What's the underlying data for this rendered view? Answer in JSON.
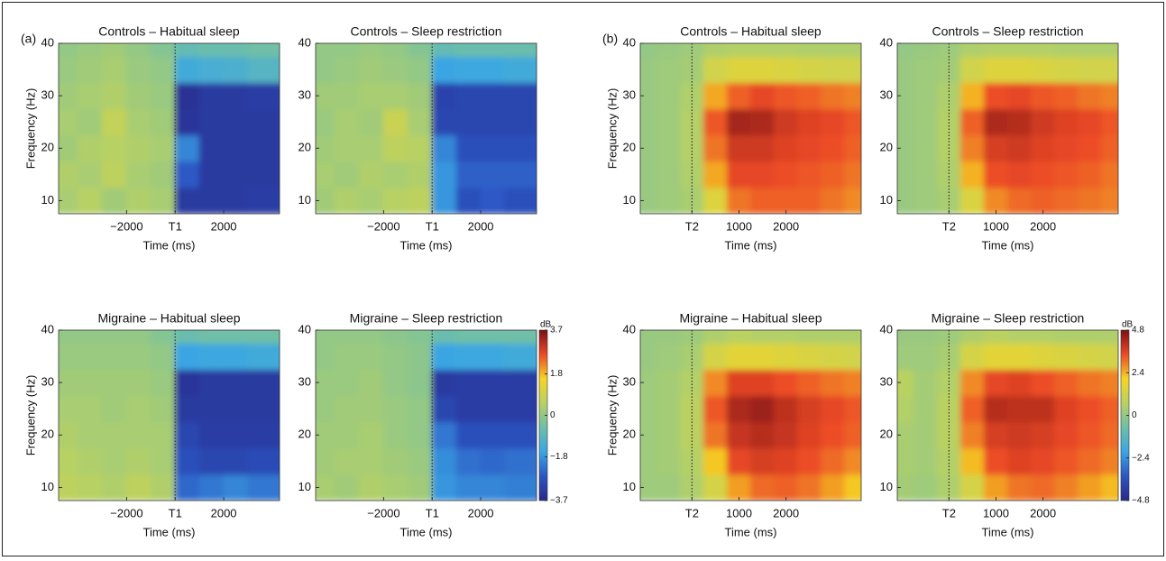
{
  "chart_data": [
    {
      "type": "heatmap",
      "panel_label": "(a)",
      "title": "Controls – Habitual sleep",
      "xlabel": "Time (ms)",
      "ylabel": "Frequency (Hz)",
      "xlim": [
        -4800,
        4300
      ],
      "ylim": [
        7.5,
        40
      ],
      "xticks": [
        {
          "value": -2000,
          "label": "−2000"
        },
        {
          "value": 0,
          "label": "T1"
        },
        2000
      ],
      "yticks": [
        10,
        20,
        30,
        40
      ],
      "zlim": [
        -3.7,
        3.7
      ],
      "colorscale": [
        "#2a2a8a",
        "#2c55c4",
        "#3aa6e4",
        "#6dbfa8",
        "#b9d163",
        "#f6d523",
        "#ec4a26",
        "#7b1016"
      ],
      "x": [
        -4500,
        -3500,
        -2500,
        -1500,
        -500,
        500,
        1500,
        2500,
        3500,
        4500
      ],
      "y": [
        10,
        15,
        20,
        25,
        30,
        35,
        40
      ],
      "z": [
        [
          0.3,
          0.5,
          0.2,
          0.4,
          0.3,
          -3.3,
          -3.3,
          -3.3,
          -3.2,
          -3.2
        ],
        [
          0.4,
          0.3,
          0.6,
          0.3,
          0.2,
          -2.6,
          -3.3,
          -3.3,
          -3.3,
          -3.3
        ],
        [
          0.2,
          0.4,
          0.5,
          0.4,
          0.3,
          -2.0,
          -3.3,
          -3.3,
          -3.3,
          -3.3
        ],
        [
          0.3,
          0.2,
          0.7,
          0.3,
          0.2,
          -3.4,
          -3.3,
          -3.3,
          -3.3,
          -3.3
        ],
        [
          0.2,
          0.3,
          0.4,
          0.2,
          0.1,
          -3.5,
          -3.3,
          -3.3,
          -3.2,
          -3.2
        ],
        [
          0.1,
          0.2,
          0.3,
          0.1,
          0.0,
          -1.4,
          -1.3,
          -1.2,
          -1.0,
          -1.0
        ],
        [
          0.0,
          0.1,
          0.2,
          0.0,
          -0.2,
          -0.7,
          -0.6,
          -0.6,
          -0.5,
          -0.5
        ]
      ]
    },
    {
      "type": "heatmap",
      "title": "Controls – Sleep restriction",
      "xlim": [
        -4800,
        4300
      ],
      "ylim": [
        7.5,
        40
      ],
      "xticks": [
        {
          "value": -2000,
          "label": "−2000"
        },
        {
          "value": 0,
          "label": "T1"
        },
        2000
      ],
      "yticks": [
        10,
        20,
        30,
        40
      ],
      "zlim": [
        -3.7,
        3.7
      ],
      "colorscale": [
        "#2a2a8a",
        "#2c55c4",
        "#3aa6e4",
        "#6dbfa8",
        "#b9d163",
        "#f6d523",
        "#ec4a26",
        "#7b1016"
      ],
      "x": [
        -4500,
        -3500,
        -2500,
        -1500,
        -500,
        500,
        1500,
        2500,
        3500,
        4500
      ],
      "y": [
        10,
        15,
        20,
        25,
        30,
        35,
        40
      ],
      "z": [
        [
          0.2,
          0.4,
          0.3,
          0.5,
          0.6,
          -1.8,
          -2.8,
          -2.6,
          -2.8,
          -2.8
        ],
        [
          0.3,
          0.2,
          0.4,
          0.3,
          0.4,
          -1.8,
          -2.5,
          -2.5,
          -2.5,
          -2.5
        ],
        [
          0.2,
          0.3,
          0.3,
          0.6,
          0.5,
          -2.0,
          -2.8,
          -2.8,
          -2.8,
          -2.8
        ],
        [
          0.1,
          0.3,
          0.2,
          0.8,
          0.3,
          -3.0,
          -3.0,
          -3.0,
          -3.0,
          -3.0
        ],
        [
          0.2,
          0.2,
          0.3,
          0.3,
          0.2,
          -3.1,
          -3.0,
          -3.0,
          -3.0,
          -3.0
        ],
        [
          0.0,
          0.1,
          0.2,
          0.1,
          0.0,
          -1.6,
          -1.5,
          -1.5,
          -1.4,
          -1.4
        ],
        [
          0.0,
          0.0,
          0.1,
          0.0,
          -0.2,
          -0.7,
          -0.6,
          -0.6,
          -0.6,
          -0.6
        ]
      ]
    },
    {
      "type": "heatmap",
      "panel_label": "(b)",
      "title": "Controls – Habitual sleep",
      "xlabel": "Time (ms)",
      "ylabel": "Frequency (Hz)",
      "xlim": [
        -1100,
        3600
      ],
      "ylim": [
        7.5,
        40
      ],
      "xticks": [
        {
          "value": 0,
          "label": "T2"
        },
        1000,
        2000
      ],
      "yticks": [
        10,
        20,
        30,
        40
      ],
      "zlim": [
        -4.8,
        4.8
      ],
      "colorscale": [
        "#2a2a8a",
        "#2c55c4",
        "#3aa6e4",
        "#6dbfa8",
        "#b9d163",
        "#f6d523",
        "#ec4a26",
        "#7b1016"
      ],
      "x": [
        -1000,
        -500,
        0,
        500,
        1000,
        1500,
        2000,
        2500,
        3000,
        3500
      ],
      "y": [
        10,
        15,
        20,
        25,
        30,
        35,
        40
      ],
      "z": [
        [
          0.1,
          0.2,
          0.4,
          1.5,
          3.0,
          3.2,
          3.2,
          3.2,
          3.0,
          2.8
        ],
        [
          0.1,
          0.2,
          0.5,
          2.5,
          3.5,
          3.5,
          3.4,
          3.3,
          3.2,
          3.0
        ],
        [
          0.1,
          0.2,
          0.6,
          3.0,
          3.8,
          3.8,
          3.6,
          3.5,
          3.4,
          3.2
        ],
        [
          0.1,
          0.2,
          0.6,
          3.3,
          4.3,
          4.2,
          3.8,
          3.6,
          3.5,
          3.3
        ],
        [
          0.1,
          0.2,
          0.5,
          2.5,
          3.2,
          3.5,
          3.3,
          3.2,
          3.0,
          2.9
        ],
        [
          0.1,
          0.2,
          0.3,
          1.2,
          1.5,
          1.5,
          1.4,
          1.3,
          1.2,
          1.2
        ],
        [
          0.0,
          0.1,
          0.2,
          0.5,
          0.6,
          0.6,
          0.6,
          0.5,
          0.5,
          0.5
        ]
      ]
    },
    {
      "type": "heatmap",
      "title": "Controls – Sleep restriction",
      "xlim": [
        -1100,
        3600
      ],
      "ylim": [
        7.5,
        40
      ],
      "xticks": [
        {
          "value": 0,
          "label": "T2"
        },
        1000,
        2000
      ],
      "yticks": [
        10,
        20,
        30,
        40
      ],
      "zlim": [
        -4.8,
        4.8
      ],
      "colorscale": [
        "#2a2a8a",
        "#2c55c4",
        "#3aa6e4",
        "#6dbfa8",
        "#b9d163",
        "#f6d523",
        "#ec4a26",
        "#7b1016"
      ],
      "x": [
        -1000,
        -500,
        0,
        500,
        1000,
        1500,
        2000,
        2500,
        3000,
        3500
      ],
      "y": [
        10,
        15,
        20,
        25,
        30,
        35,
        40
      ],
      "z": [
        [
          0.1,
          0.2,
          0.4,
          1.4,
          2.8,
          3.1,
          3.2,
          3.1,
          3.0,
          2.9
        ],
        [
          0.1,
          0.2,
          0.5,
          2.4,
          3.4,
          3.5,
          3.4,
          3.3,
          3.2,
          3.0
        ],
        [
          0.1,
          0.2,
          0.6,
          2.9,
          3.7,
          3.8,
          3.6,
          3.5,
          3.4,
          3.2
        ],
        [
          0.1,
          0.2,
          0.6,
          3.2,
          4.2,
          4.1,
          3.8,
          3.6,
          3.5,
          3.3
        ],
        [
          0.1,
          0.2,
          0.5,
          2.4,
          3.4,
          3.5,
          3.3,
          3.2,
          3.0,
          2.9
        ],
        [
          0.1,
          0.2,
          0.3,
          1.2,
          1.5,
          1.5,
          1.4,
          1.3,
          1.2,
          1.2
        ],
        [
          0.0,
          0.1,
          0.2,
          0.5,
          0.6,
          0.6,
          0.6,
          0.5,
          0.5,
          0.5
        ]
      ]
    },
    {
      "type": "heatmap",
      "title": "Migraine – Habitual sleep",
      "xlabel": "Time (ms)",
      "ylabel": "Frequency (Hz)",
      "xlim": [
        -4800,
        4300
      ],
      "ylim": [
        7.5,
        40
      ],
      "xticks": [
        {
          "value": -2000,
          "label": "−2000"
        },
        {
          "value": 0,
          "label": "T1"
        },
        2000
      ],
      "yticks": [
        10,
        20,
        30,
        40
      ],
      "zlim": [
        -3.7,
        3.7
      ],
      "colorscale": [
        "#2a2a8a",
        "#2c55c4",
        "#3aa6e4",
        "#6dbfa8",
        "#b9d163",
        "#f6d523",
        "#ec4a26",
        "#7b1016"
      ],
      "x": [
        -4500,
        -3500,
        -2500,
        -1500,
        -500,
        500,
        1500,
        2500,
        3500,
        4500
      ],
      "y": [
        10,
        15,
        20,
        25,
        30,
        35,
        40
      ],
      "z": [
        [
          0.6,
          0.5,
          0.4,
          0.6,
          0.4,
          -2.4,
          -2.2,
          -2.0,
          -2.2,
          -2.2
        ],
        [
          0.5,
          0.4,
          0.3,
          0.4,
          0.3,
          -2.8,
          -3.0,
          -3.0,
          -2.9,
          -2.9
        ],
        [
          0.4,
          0.3,
          0.3,
          0.3,
          0.3,
          -3.0,
          -3.2,
          -3.2,
          -3.2,
          -3.2
        ],
        [
          0.3,
          0.3,
          0.2,
          0.3,
          0.2,
          -3.3,
          -3.3,
          -3.3,
          -3.3,
          -3.3
        ],
        [
          0.2,
          0.2,
          0.2,
          0.2,
          0.1,
          -3.4,
          -3.3,
          -3.3,
          -3.3,
          -3.3
        ],
        [
          0.1,
          0.1,
          0.1,
          0.1,
          0.0,
          -1.6,
          -1.5,
          -1.5,
          -1.4,
          -1.4
        ],
        [
          0.0,
          0.0,
          0.0,
          0.0,
          -0.2,
          -0.6,
          -0.5,
          -0.5,
          -0.5,
          -0.5
        ]
      ]
    },
    {
      "type": "heatmap",
      "title": "Migraine – Sleep restriction",
      "xlim": [
        -4800,
        4300
      ],
      "ylim": [
        7.5,
        40
      ],
      "xticks": [
        {
          "value": -2000,
          "label": "−2000"
        },
        {
          "value": 0,
          "label": "T1"
        },
        2000
      ],
      "yticks": [
        10,
        20,
        30,
        40
      ],
      "zlim": [
        -3.7,
        3.7
      ],
      "colorscale": [
        "#2a2a8a",
        "#2c55c4",
        "#3aa6e4",
        "#6dbfa8",
        "#b9d163",
        "#f6d523",
        "#ec4a26",
        "#7b1016"
      ],
      "colorbar": {
        "label": "dB",
        "ticks": [
          {
            "value": -3.7,
            "label": "−3.7"
          },
          {
            "value": -1.8,
            "label": "−1.8"
          },
          0,
          1.8,
          3.7
        ]
      },
      "x": [
        -4500,
        -3500,
        -2500,
        -1500,
        -500,
        500,
        1500,
        2500,
        3500,
        4500
      ],
      "y": [
        10,
        15,
        20,
        25,
        30,
        35,
        40
      ],
      "z": [
        [
          0.3,
          0.2,
          0.4,
          0.3,
          0.2,
          -1.8,
          -2.0,
          -2.0,
          -2.1,
          -2.1
        ],
        [
          0.2,
          0.3,
          0.3,
          0.2,
          0.1,
          -1.9,
          -2.3,
          -2.4,
          -2.3,
          -2.3
        ],
        [
          0.2,
          0.2,
          0.3,
          0.1,
          0.0,
          -2.2,
          -2.8,
          -2.8,
          -2.8,
          -2.8
        ],
        [
          0.1,
          0.2,
          0.2,
          0.1,
          0.0,
          -3.0,
          -3.2,
          -3.2,
          -3.2,
          -3.2
        ],
        [
          0.1,
          0.1,
          0.2,
          0.0,
          -0.1,
          -3.3,
          -3.2,
          -3.2,
          -3.2,
          -3.2
        ],
        [
          0.0,
          0.1,
          0.1,
          0.0,
          -0.1,
          -1.6,
          -1.5,
          -1.5,
          -1.4,
          -1.4
        ],
        [
          0.0,
          0.0,
          0.0,
          -0.1,
          -0.2,
          -0.6,
          -0.5,
          -0.5,
          -0.5,
          -0.5
        ]
      ]
    },
    {
      "type": "heatmap",
      "title": "Migraine – Habitual sleep",
      "xlabel": "Time (ms)",
      "ylabel": "Frequency (Hz)",
      "xlim": [
        -1100,
        3600
      ],
      "ylim": [
        7.5,
        40
      ],
      "xticks": [
        {
          "value": 0,
          "label": "T2"
        },
        1000,
        2000
      ],
      "yticks": [
        10,
        20,
        30,
        40
      ],
      "zlim": [
        -4.8,
        4.8
      ],
      "colorscale": [
        "#2a2a8a",
        "#2c55c4",
        "#3aa6e4",
        "#6dbfa8",
        "#b9d163",
        "#f6d523",
        "#ec4a26",
        "#7b1016"
      ],
      "x": [
        -1000,
        -500,
        0,
        500,
        1000,
        1500,
        2000,
        2500,
        3000,
        3500
      ],
      "y": [
        10,
        15,
        20,
        25,
        30,
        35,
        40
      ],
      "z": [
        [
          0.2,
          0.2,
          0.5,
          1.3,
          2.6,
          3.1,
          3.2,
          3.0,
          2.6,
          2.2
        ],
        [
          0.2,
          0.3,
          0.6,
          2.2,
          3.5,
          3.7,
          3.6,
          3.4,
          3.1,
          2.8
        ],
        [
          0.2,
          0.3,
          0.7,
          3.0,
          3.9,
          4.1,
          3.9,
          3.6,
          3.4,
          3.2
        ],
        [
          0.2,
          0.3,
          0.7,
          3.3,
          4.2,
          4.4,
          4.0,
          3.7,
          3.5,
          3.3
        ],
        [
          0.2,
          0.3,
          0.6,
          2.8,
          3.6,
          3.6,
          3.4,
          3.2,
          3.0,
          2.9
        ],
        [
          0.1,
          0.2,
          0.4,
          1.3,
          1.6,
          1.6,
          1.5,
          1.4,
          1.3,
          1.2
        ],
        [
          0.1,
          0.1,
          0.2,
          0.5,
          0.7,
          0.6,
          0.6,
          0.5,
          0.5,
          0.5
        ]
      ]
    },
    {
      "type": "heatmap",
      "title": "Migraine – Sleep restriction",
      "xlim": [
        -1100,
        3600
      ],
      "ylim": [
        7.5,
        40
      ],
      "xticks": [
        {
          "value": 0,
          "label": "T2"
        },
        1000,
        2000
      ],
      "yticks": [
        10,
        20,
        30,
        40
      ],
      "zlim": [
        -4.8,
        4.8
      ],
      "colorscale": [
        "#2a2a8a",
        "#2c55c4",
        "#3aa6e4",
        "#6dbfa8",
        "#b9d163",
        "#f6d523",
        "#ec4a26",
        "#7b1016"
      ],
      "colorbar": {
        "label": "dB",
        "ticks": [
          {
            "value": -4.8,
            "label": "−4.8"
          },
          {
            "value": -2.4,
            "label": "−2.4"
          },
          0,
          2.4,
          4.8
        ]
      },
      "x": [
        -1000,
        -500,
        0,
        500,
        1000,
        1500,
        2000,
        2500,
        3000,
        3500
      ],
      "y": [
        10,
        15,
        20,
        25,
        30,
        35,
        40
      ],
      "z": [
        [
          0.3,
          0.2,
          0.5,
          1.3,
          2.6,
          3.0,
          3.1,
          2.9,
          2.6,
          2.3
        ],
        [
          0.4,
          0.3,
          0.6,
          2.3,
          3.4,
          3.6,
          3.5,
          3.3,
          3.1,
          2.9
        ],
        [
          0.4,
          0.3,
          0.7,
          2.9,
          3.7,
          3.8,
          3.7,
          3.5,
          3.3,
          3.1
        ],
        [
          0.6,
          0.3,
          0.7,
          3.2,
          4.1,
          4.0,
          4.0,
          3.6,
          3.4,
          3.2
        ],
        [
          0.7,
          0.3,
          0.6,
          2.8,
          3.5,
          3.6,
          3.4,
          3.2,
          3.0,
          2.9
        ],
        [
          0.2,
          0.2,
          0.4,
          1.3,
          1.6,
          1.6,
          1.5,
          1.4,
          1.3,
          1.2
        ],
        [
          0.1,
          0.1,
          0.2,
          0.5,
          0.7,
          0.6,
          0.6,
          0.5,
          0.5,
          0.5
        ]
      ]
    }
  ]
}
